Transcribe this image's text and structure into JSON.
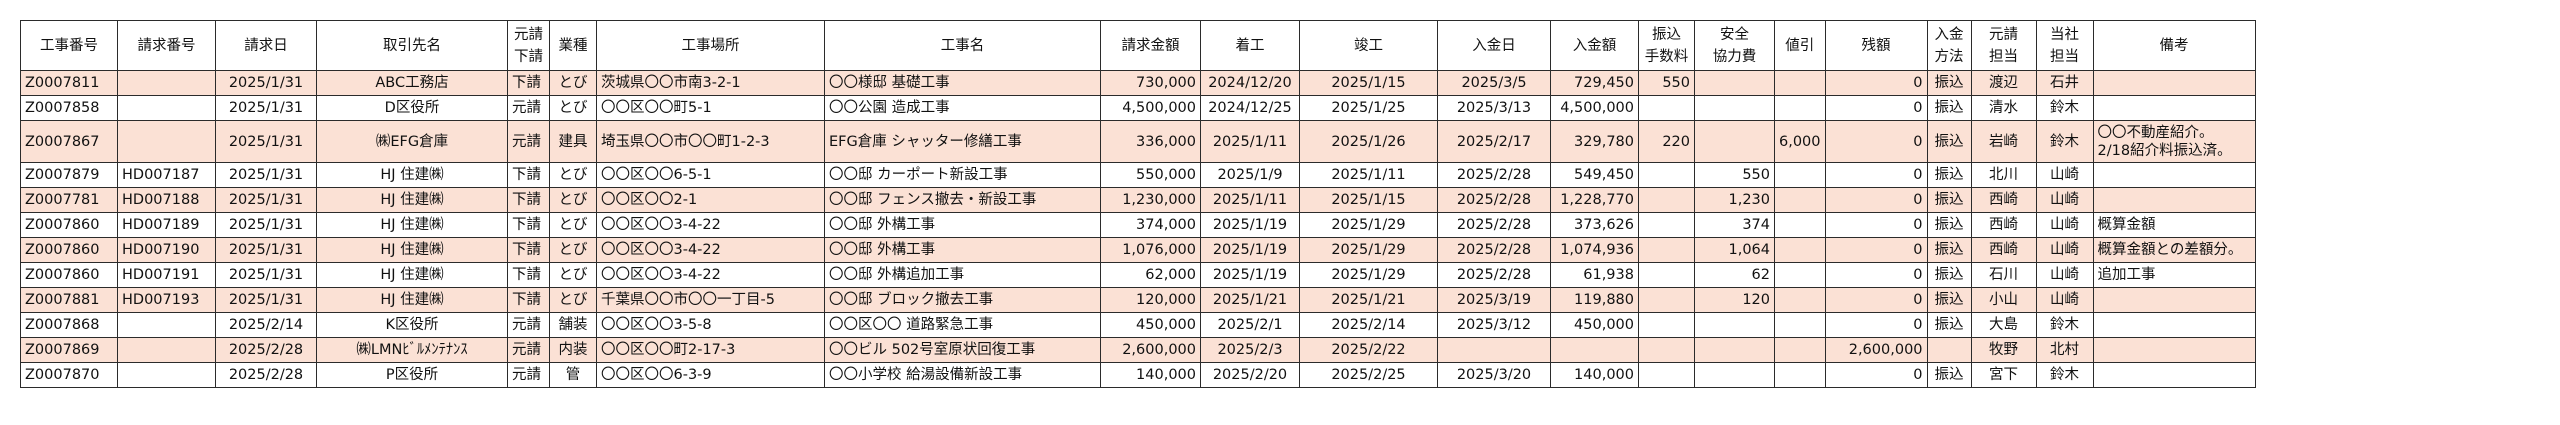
{
  "headers": [
    "工事番号",
    "請求番号",
    "請求日",
    "取引先名",
    "元請\n下請",
    "業種",
    "工事場所",
    "工事名",
    "請求金額",
    "着工",
    "竣工",
    "入金日",
    "入金額",
    "振込\n手数料",
    "安全\n協力費",
    "値引",
    "残額",
    "入金\n方法",
    "元請\n担当",
    "当社\n担当",
    "備考"
  ],
  "rows": [
    {
      "shade": true,
      "cells": [
        "Z0007811",
        "",
        "2025/1/31",
        "ABC工務店",
        "下請",
        "とび",
        "茨城県〇〇市南3-2-1",
        "〇〇様邸 基礎工事",
        "730,000",
        "2024/12/20",
        "2025/1/15",
        "2025/3/5",
        "729,450",
        "550",
        "",
        "",
        "0",
        "振込",
        "渡辺",
        "石井",
        ""
      ]
    },
    {
      "shade": false,
      "cells": [
        "Z0007858",
        "",
        "2025/1/31",
        "D区役所",
        "元請",
        "とび",
        "〇〇区〇〇町5-1",
        "〇〇公園 造成工事",
        "4,500,000",
        "2024/12/25",
        "2025/1/25",
        "2025/3/13",
        "4,500,000",
        "",
        "",
        "",
        "0",
        "振込",
        "清水",
        "鈴木",
        ""
      ]
    },
    {
      "shade": true,
      "tall": true,
      "cells": [
        "Z0007867",
        "",
        "2025/1/31",
        "㈱EFG倉庫",
        "元請",
        "建具",
        "埼玉県〇〇市〇〇町1-2-3",
        "EFG倉庫 シャッター修繕工事",
        "336,000",
        "2025/1/11",
        "2025/1/26",
        "2025/2/17",
        "329,780",
        "220",
        "",
        "6,000",
        "0",
        "振込",
        "岩崎",
        "鈴木",
        "〇〇不動産紹介。\n2/18紹介料振込済。"
      ]
    },
    {
      "shade": false,
      "cells": [
        "Z0007879",
        "HD007187",
        "2025/1/31",
        "HJ 住建㈱",
        "下請",
        "とび",
        "〇〇区〇〇6-5-1",
        "〇〇邸 カーポート新設工事",
        "550,000",
        "2025/1/9",
        "2025/1/11",
        "2025/2/28",
        "549,450",
        "",
        "550",
        "",
        "0",
        "振込",
        "北川",
        "山崎",
        ""
      ]
    },
    {
      "shade": true,
      "cells": [
        "Z0007781",
        "HD007188",
        "2025/1/31",
        "HJ 住建㈱",
        "下請",
        "とび",
        "〇〇区〇〇2-1",
        "〇〇邸 フェンス撤去・新設工事",
        "1,230,000",
        "2025/1/11",
        "2025/1/15",
        "2025/2/28",
        "1,228,770",
        "",
        "1,230",
        "",
        "0",
        "振込",
        "西崎",
        "山崎",
        ""
      ]
    },
    {
      "shade": false,
      "cells": [
        "Z0007860",
        "HD007189",
        "2025/1/31",
        "HJ 住建㈱",
        "下請",
        "とび",
        "〇〇区〇〇3-4-22",
        "〇〇邸 外構工事",
        "374,000",
        "2025/1/19",
        "2025/1/29",
        "2025/2/28",
        "373,626",
        "",
        "374",
        "",
        "0",
        "振込",
        "西崎",
        "山崎",
        "概算金額"
      ]
    },
    {
      "shade": true,
      "cells": [
        "Z0007860",
        "HD007190",
        "2025/1/31",
        "HJ 住建㈱",
        "下請",
        "とび",
        "〇〇区〇〇3-4-22",
        "〇〇邸 外構工事",
        "1,076,000",
        "2025/1/19",
        "2025/1/29",
        "2025/2/28",
        "1,074,936",
        "",
        "1,064",
        "",
        "0",
        "振込",
        "西崎",
        "山崎",
        "概算金額との差額分。"
      ]
    },
    {
      "shade": false,
      "cells": [
        "Z0007860",
        "HD007191",
        "2025/1/31",
        "HJ 住建㈱",
        "下請",
        "とび",
        "〇〇区〇〇3-4-22",
        "〇〇邸 外構追加工事",
        "62,000",
        "2025/1/19",
        "2025/1/29",
        "2025/2/28",
        "61,938",
        "",
        "62",
        "",
        "0",
        "振込",
        "石川",
        "山崎",
        "追加工事"
      ]
    },
    {
      "shade": true,
      "cells": [
        "Z0007881",
        "HD007193",
        "2025/1/31",
        "HJ 住建㈱",
        "下請",
        "とび",
        "千葉県〇〇市〇〇一丁目-5",
        "〇〇邸 ブロック撤去工事",
        "120,000",
        "2025/1/21",
        "2025/1/21",
        "2025/3/19",
        "119,880",
        "",
        "120",
        "",
        "0",
        "振込",
        "小山",
        "山崎",
        ""
      ]
    },
    {
      "shade": false,
      "cells": [
        "Z0007868",
        "",
        "2025/2/14",
        "K区役所",
        "元請",
        "舗装",
        "〇〇区〇〇3-5-8",
        "〇〇区〇〇 道路緊急工事",
        "450,000",
        "2025/2/1",
        "2025/2/14",
        "2025/3/12",
        "450,000",
        "",
        "",
        "",
        "0",
        "振込",
        "大島",
        "鈴木",
        ""
      ]
    },
    {
      "shade": true,
      "cells": [
        "Z0007869",
        "",
        "2025/2/28",
        "㈱LMNﾋﾞﾙﾒﾝﾃﾅﾝｽ",
        "元請",
        "内装",
        "〇〇区〇〇町2-17-3",
        "〇〇ビル 502号室原状回復工事",
        "2,600,000",
        "2025/2/3",
        "2025/2/22",
        "",
        "",
        "",
        "",
        "",
        "2,600,000",
        "",
        "牧野",
        "北村",
        ""
      ]
    },
    {
      "shade": false,
      "cells": [
        "Z0007870",
        "",
        "2025/2/28",
        "P区役所",
        "元請",
        "管",
        "〇〇区〇〇6-3-9",
        "〇〇小学校 給湯設備新設工事",
        "140,000",
        "2025/2/20",
        "2025/2/25",
        "2025/3/20",
        "140,000",
        "",
        "",
        "",
        "0",
        "振込",
        "宮下",
        "鈴木",
        ""
      ]
    }
  ]
}
